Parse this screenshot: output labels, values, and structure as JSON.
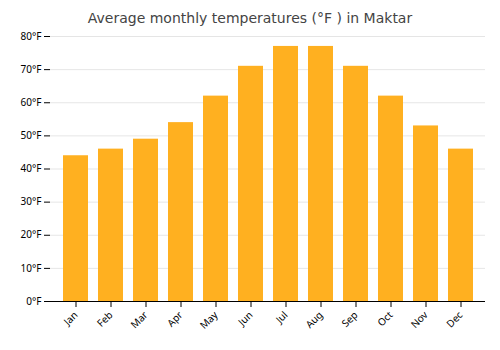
{
  "chart_data": {
    "type": "bar",
    "title": "Average monthly temperatures (°F ) in Maktar",
    "categories": [
      "Jan",
      "Feb",
      "Mar",
      "Apr",
      "May",
      "Jun",
      "Jul",
      "Aug",
      "Sep",
      "Oct",
      "Nov",
      "Dec"
    ],
    "values": [
      44,
      46,
      49,
      54,
      62,
      71,
      77,
      77,
      71,
      62,
      53,
      46
    ],
    "color": "#FFB020",
    "ylim": [
      0,
      80
    ],
    "yticks": [
      {
        "value": 0,
        "label": "0°F"
      },
      {
        "value": 10,
        "label": "10°F"
      },
      {
        "value": 20,
        "label": "20°F"
      },
      {
        "value": 30,
        "label": "30°F"
      },
      {
        "value": 40,
        "label": "40°F"
      },
      {
        "value": 50,
        "label": "50°F"
      },
      {
        "value": 60,
        "label": "60°F"
      },
      {
        "value": 70,
        "label": "70°F"
      },
      {
        "value": 80,
        "label": "80°F"
      }
    ],
    "grid": true
  }
}
